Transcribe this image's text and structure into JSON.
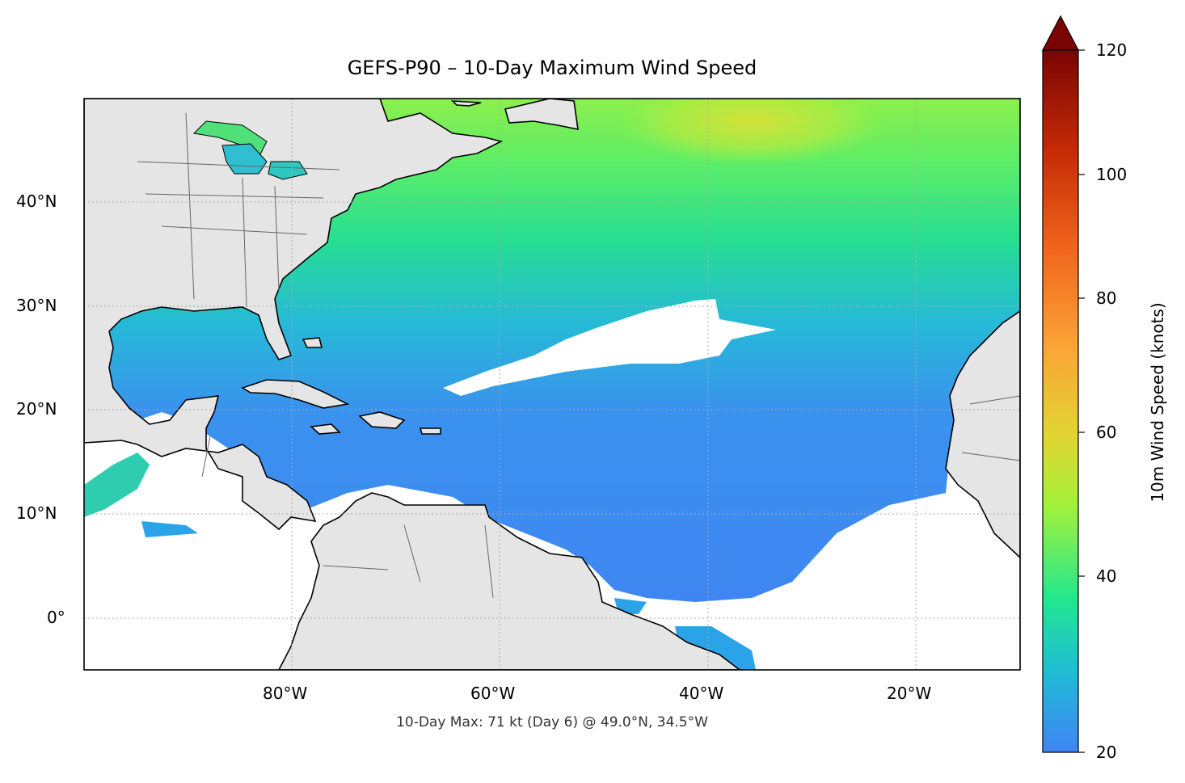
{
  "title": "GEFS-P90 – 10-Day Maximum Wind Speed",
  "footer": "10-Day Max: 71 kt (Day 6) @ 49.0°N, 34.5°W",
  "lat_labels": [
    "40°N",
    "30°N",
    "20°N",
    "10°N",
    "0°"
  ],
  "lon_labels": [
    "80°W",
    "60°W",
    "40°W",
    "20°W"
  ],
  "colorbar": {
    "label": "10m Wind Speed (knots)",
    "ticks": [
      "120",
      "100",
      "80",
      "60",
      "40",
      "20"
    ],
    "min": 20,
    "max": 120,
    "extend": "max",
    "colors": [
      "#3f84f5",
      "#1fbfd2",
      "#23e78e",
      "#a2f23a",
      "#e1d533",
      "#fba335",
      "#f0641c",
      "#c32a05",
      "#7a0403"
    ]
  },
  "chart_data": {
    "type": "heatmap",
    "title": "GEFS-P90 – 10-Day Maximum Wind Speed",
    "variable": "10m Wind Speed (knots)",
    "extent_lon": [
      -100,
      -10
    ],
    "extent_lat": [
      -5,
      50
    ],
    "gridlines": true,
    "max_value": 71,
    "max_day": 6,
    "max_location": "49.0°N, 34.5°W"
  }
}
